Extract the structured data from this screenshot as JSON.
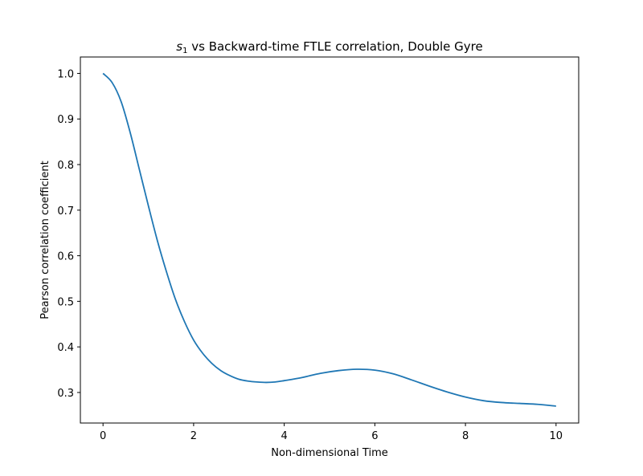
{
  "chart_data": {
    "type": "line",
    "title_math": "s",
    "title_math_sub": "1",
    "title_rest": " vs Backward-time FTLE correlation, Double Gyre",
    "xlabel": "Non-dimensional Time",
    "ylabel": "Pearson correlation coefficient",
    "xlim": [
      -0.5,
      10.5
    ],
    "ylim": [
      0.233,
      1.036
    ],
    "xticks": [
      0,
      2,
      4,
      6,
      8,
      10
    ],
    "yticks": [
      0.3,
      0.4,
      0.5,
      0.6,
      0.7,
      0.8,
      0.9,
      1.0
    ],
    "xtick_labels": [
      "0",
      "2",
      "4",
      "6",
      "8",
      "10"
    ],
    "ytick_labels": [
      "0.3",
      "0.4",
      "0.5",
      "0.6",
      "0.7",
      "0.8",
      "0.9",
      "1.0"
    ],
    "grid": false,
    "series": [
      {
        "color": "#1f77b4",
        "x": [
          0,
          0.2,
          0.4,
          0.6,
          0.8,
          1.0,
          1.2,
          1.4,
          1.6,
          1.8,
          2.0,
          2.2,
          2.4,
          2.6,
          2.8,
          3.0,
          3.2,
          3.4,
          3.6,
          3.8,
          4.0,
          4.4,
          4.8,
          5.2,
          5.6,
          6.0,
          6.4,
          6.8,
          7.2,
          7.6,
          8.0,
          8.4,
          8.8,
          9.2,
          9.6,
          10.0
        ],
        "y": [
          1.0,
          0.98,
          0.938,
          0.87,
          0.79,
          0.71,
          0.633,
          0.565,
          0.504,
          0.455,
          0.415,
          0.386,
          0.364,
          0.348,
          0.337,
          0.329,
          0.325,
          0.323,
          0.322,
          0.323,
          0.326,
          0.333,
          0.342,
          0.348,
          0.351,
          0.349,
          0.341,
          0.328,
          0.314,
          0.301,
          0.29,
          0.282,
          0.278,
          0.276,
          0.274,
          0.27
        ]
      }
    ]
  }
}
